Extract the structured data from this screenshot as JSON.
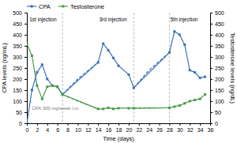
{
  "chart_data": {
    "type": "line",
    "xlabel": "Time (days)",
    "ylabel": "CPA levels (ng/mL)",
    "y2label": "Testosterone levels (ng/dL)",
    "xlim": [
      0,
      36
    ],
    "xticks": [
      0,
      2,
      4,
      6,
      8,
      10,
      12,
      14,
      16,
      18,
      20,
      22,
      24,
      26,
      28,
      30,
      32,
      34,
      36
    ],
    "ylim": [
      0,
      500
    ],
    "yticks": [
      0,
      50,
      100,
      150,
      200,
      250,
      300,
      350,
      400,
      450,
      500
    ],
    "y2lim": [
      0,
      500
    ],
    "y2ticks": [
      0,
      50,
      100,
      150,
      200,
      250,
      300,
      350,
      400,
      450,
      500
    ],
    "grid": false,
    "legend": "upper left",
    "series": [
      {
        "name": "CPA",
        "color": "#3a72b8",
        "marker": "square",
        "axis": "y",
        "x": [
          0,
          1,
          2,
          3,
          4,
          5,
          6,
          7,
          14,
          15,
          16,
          17,
          18,
          20,
          21,
          28,
          29,
          30,
          31,
          32,
          33,
          34,
          35
        ],
        "values": [
          0,
          150,
          230,
          265,
          200,
          170,
          165,
          130,
          275,
          360,
          330,
          295,
          260,
          220,
          160,
          320,
          415,
          400,
          355,
          240,
          230,
          205,
          210
        ]
      },
      {
        "color": "#3a72b8",
        "line_style": "dashed",
        "axis": "y",
        "x": [
          7,
          10,
          14
        ],
        "values": [
          130,
          200,
          275
        ]
      },
      {
        "color": "#3a72b8",
        "line_style": "dashed",
        "axis": "y",
        "x": [
          21,
          24,
          28
        ],
        "values": [
          160,
          240,
          320
        ]
      },
      {
        "name": "Testosterone",
        "color": "#4a9a4a",
        "marker": "square",
        "axis": "y2",
        "x": [
          0,
          1,
          2,
          3,
          4,
          5,
          6,
          7,
          14,
          15,
          16,
          17,
          18,
          20,
          21,
          28,
          29,
          30,
          31,
          32,
          33,
          34,
          35
        ],
        "values": [
          360,
          305,
          170,
          110,
          165,
          170,
          165,
          130,
          65,
          65,
          70,
          65,
          68,
          68,
          68,
          70,
          75,
          80,
          90,
          100,
          105,
          110,
          130
        ]
      },
      {
        "color": "#4a9a4a",
        "line_style": "dashed",
        "axis": "y2",
        "x": [
          7,
          10,
          14
        ],
        "values": [
          130,
          100,
          65
        ]
      },
      {
        "color": "#4a9a4a",
        "line_style": "dashed",
        "axis": "y2",
        "x": [
          21,
          24,
          28
        ],
        "values": [
          68,
          68,
          70
        ]
      }
    ],
    "vlines": [
      7,
      21,
      28
    ],
    "annotations": [
      {
        "text": "1st injection",
        "x": 0.5,
        "y": 478
      },
      {
        "text": "3rd injection",
        "x": 14.2,
        "y": 478
      },
      {
        "text": "5th injection",
        "x": 28.2,
        "y": 478
      },
      {
        "text": "CPA 300 mg/week i.m.",
        "x": 1.0,
        "y": 60
      }
    ]
  }
}
